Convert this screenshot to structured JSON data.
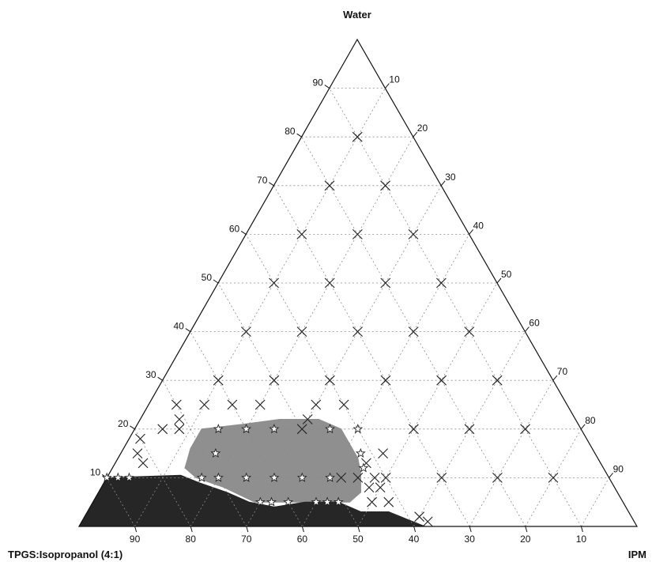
{
  "chart_data": {
    "type": "scatter",
    "subtype": "ternary",
    "vertices": {
      "top": "Water",
      "bottom_left": "TPGS:Isopropanol (4:1)",
      "bottom_right": "IPM"
    },
    "left_axis_ticks": [
      10,
      20,
      30,
      40,
      50,
      60,
      70,
      80,
      90
    ],
    "right_axis_ticks": [
      10,
      20,
      30,
      40,
      50,
      60,
      70,
      80,
      90
    ],
    "bottom_axis_ticks": [
      90,
      80,
      70,
      60,
      50,
      40,
      30,
      20,
      10
    ],
    "grid": true,
    "series": [
      {
        "marker": "x",
        "points": [
          {
            "water": 80,
            "ipm": 10
          },
          {
            "water": 70,
            "ipm": 10
          },
          {
            "water": 70,
            "ipm": 20
          },
          {
            "water": 60,
            "ipm": 10
          },
          {
            "water": 60,
            "ipm": 20
          },
          {
            "water": 60,
            "ipm": 30
          },
          {
            "water": 50,
            "ipm": 10
          },
          {
            "water": 50,
            "ipm": 20
          },
          {
            "water": 50,
            "ipm": 30
          },
          {
            "water": 50,
            "ipm": 40
          },
          {
            "water": 40,
            "ipm": 10
          },
          {
            "water": 40,
            "ipm": 20
          },
          {
            "water": 40,
            "ipm": 30
          },
          {
            "water": 40,
            "ipm": 40
          },
          {
            "water": 40,
            "ipm": 50
          },
          {
            "water": 30,
            "ipm": 10
          },
          {
            "water": 30,
            "ipm": 20
          },
          {
            "water": 30,
            "ipm": 30
          },
          {
            "water": 30,
            "ipm": 40
          },
          {
            "water": 30,
            "ipm": 50
          },
          {
            "water": 30,
            "ipm": 60
          },
          {
            "water": 25,
            "ipm": 5
          },
          {
            "water": 25,
            "ipm": 10
          },
          {
            "water": 25,
            "ipm": 15
          },
          {
            "water": 25,
            "ipm": 20
          },
          {
            "water": 25,
            "ipm": 30
          },
          {
            "water": 25,
            "ipm": 35
          },
          {
            "water": 22,
            "ipm": 7
          },
          {
            "water": 22,
            "ipm": 30
          },
          {
            "water": 20,
            "ipm": 5
          },
          {
            "water": 20,
            "ipm": 8
          },
          {
            "water": 20,
            "ipm": 30
          },
          {
            "water": 20,
            "ipm": 50
          },
          {
            "water": 20,
            "ipm": 60
          },
          {
            "water": 20,
            "ipm": 70
          },
          {
            "water": 18,
            "ipm": 2
          },
          {
            "water": 15,
            "ipm": 3
          },
          {
            "water": 15,
            "ipm": 47
          },
          {
            "water": 13,
            "ipm": 5
          },
          {
            "water": 13,
            "ipm": 45
          },
          {
            "water": 10,
            "ipm": 42
          },
          {
            "water": 10,
            "ipm": 45
          },
          {
            "water": 10,
            "ipm": 48
          },
          {
            "water": 10,
            "ipm": 50
          },
          {
            "water": 10,
            "ipm": 60
          },
          {
            "water": 10,
            "ipm": 70
          },
          {
            "water": 10,
            "ipm": 80
          },
          {
            "water": 8,
            "ipm": 48
          },
          {
            "water": 8,
            "ipm": 50
          },
          {
            "water": 5,
            "ipm": 50
          },
          {
            "water": 5,
            "ipm": 53
          },
          {
            "water": 2,
            "ipm": 60
          },
          {
            "water": 1,
            "ipm": 62
          }
        ]
      },
      {
        "marker": "star",
        "points": [
          {
            "water": 20,
            "ipm": 15
          },
          {
            "water": 20,
            "ipm": 20
          },
          {
            "water": 20,
            "ipm": 25
          },
          {
            "water": 20,
            "ipm": 35
          },
          {
            "water": 20,
            "ipm": 40
          },
          {
            "water": 15,
            "ipm": 17
          },
          {
            "water": 15,
            "ipm": 43
          },
          {
            "water": 12,
            "ipm": 45
          },
          {
            "water": 10,
            "ipm": 0
          },
          {
            "water": 10,
            "ipm": 2
          },
          {
            "water": 10,
            "ipm": 4
          },
          {
            "water": 10,
            "ipm": 17
          },
          {
            "water": 10,
            "ipm": 20
          },
          {
            "water": 10,
            "ipm": 25
          },
          {
            "water": 10,
            "ipm": 30
          },
          {
            "water": 10,
            "ipm": 35
          },
          {
            "water": 10,
            "ipm": 40
          },
          {
            "water": 5,
            "ipm": 30
          },
          {
            "water": 5,
            "ipm": 32
          },
          {
            "water": 5,
            "ipm": 35
          },
          {
            "water": 5,
            "ipm": 40
          },
          {
            "water": 5,
            "ipm": 42
          },
          {
            "water": 5,
            "ipm": 44
          }
        ]
      }
    ],
    "regions": [
      {
        "fill": "#8f8f8f",
        "boundary": [
          {
            "water": 20,
            "ipm": 12
          },
          {
            "water": 21,
            "ipm": 19
          },
          {
            "water": 22,
            "ipm": 25
          },
          {
            "water": 22,
            "ipm": 32
          },
          {
            "water": 20,
            "ipm": 37
          },
          {
            "water": 17,
            "ipm": 40
          },
          {
            "water": 14,
            "ipm": 43
          },
          {
            "water": 11,
            "ipm": 45
          },
          {
            "water": 7,
            "ipm": 47
          },
          {
            "water": 5,
            "ipm": 46
          },
          {
            "water": 5,
            "ipm": 29
          },
          {
            "water": 8,
            "ipm": 22
          },
          {
            "water": 10,
            "ipm": 16
          },
          {
            "water": 12,
            "ipm": 13
          },
          {
            "water": 16,
            "ipm": 12
          }
        ]
      },
      {
        "fill": "#262626",
        "boundary": [
          {
            "water": 0,
            "ipm": 0
          },
          {
            "water": 10,
            "ipm": 0
          },
          {
            "water": 10.5,
            "ipm": 13
          },
          {
            "water": 9,
            "ipm": 17
          },
          {
            "water": 7,
            "ipm": 23
          },
          {
            "water": 5,
            "ipm": 28
          },
          {
            "water": 4,
            "ipm": 33
          },
          {
            "water": 5,
            "ipm": 38
          },
          {
            "water": 5,
            "ipm": 44
          },
          {
            "water": 3,
            "ipm": 49
          },
          {
            "water": 3,
            "ipm": 54
          },
          {
            "water": 1.5,
            "ipm": 58
          },
          {
            "water": 0,
            "ipm": 62
          }
        ]
      }
    ]
  }
}
